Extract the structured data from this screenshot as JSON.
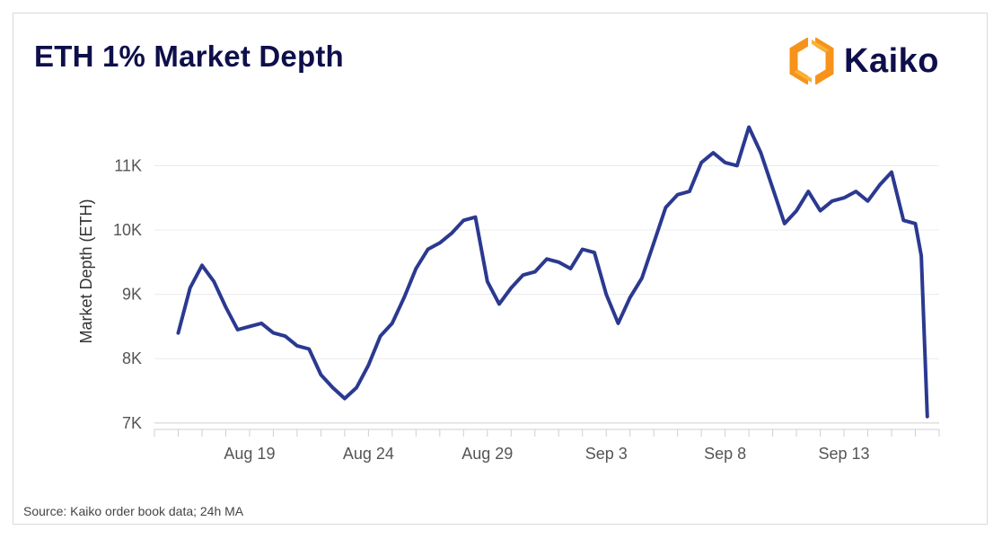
{
  "title": "ETH 1% Market Depth",
  "brand": {
    "name": "Kaiko",
    "accent": "#f7931a",
    "accent2": "#f9b233",
    "text_color": "#0e0f4a"
  },
  "source": "Source: Kaiko order book data; 24h MA",
  "chart_data": {
    "type": "line",
    "title": "ETH 1% Market Depth",
    "xlabel": "",
    "ylabel": "Market Depth (ETH)",
    "x_tick_labels": [
      "Aug 19",
      "Aug 24",
      "Aug 29",
      "Sep 3",
      "Sep 8",
      "Sep 13"
    ],
    "y_tick_labels": [
      "7K",
      "8K",
      "9K",
      "10K",
      "11K"
    ],
    "y_ticks": [
      7000,
      8000,
      9000,
      10000,
      11000
    ],
    "ylim": [
      6900,
      11900
    ],
    "xlim": [
      "2023-08-15",
      "2023-09-17"
    ],
    "grid": true,
    "line_color": "#2b3990",
    "series": [
      {
        "name": "",
        "x": [
          "2023-08-16",
          "2023-08-16T12",
          "2023-08-17",
          "2023-08-17T12",
          "2023-08-18",
          "2023-08-18T12",
          "2023-08-19",
          "2023-08-19T12",
          "2023-08-20",
          "2023-08-20T12",
          "2023-08-21",
          "2023-08-21T12",
          "2023-08-22",
          "2023-08-22T12",
          "2023-08-23",
          "2023-08-23T12",
          "2023-08-24",
          "2023-08-24T12",
          "2023-08-25",
          "2023-08-25T12",
          "2023-08-26",
          "2023-08-26T12",
          "2023-08-27",
          "2023-08-27T12",
          "2023-08-28",
          "2023-08-28T12",
          "2023-08-29",
          "2023-08-29T12",
          "2023-08-30",
          "2023-08-30T12",
          "2023-08-31",
          "2023-08-31T12",
          "2023-09-01",
          "2023-09-01T12",
          "2023-09-02",
          "2023-09-02T12",
          "2023-09-03",
          "2023-09-03T12",
          "2023-09-04",
          "2023-09-04T12",
          "2023-09-05",
          "2023-09-05T12",
          "2023-09-06",
          "2023-09-06T12",
          "2023-09-07",
          "2023-09-07T12",
          "2023-09-08",
          "2023-09-08T12",
          "2023-09-09",
          "2023-09-09T12",
          "2023-09-10",
          "2023-09-10T12",
          "2023-09-11",
          "2023-09-11T12",
          "2023-09-12",
          "2023-09-12T12",
          "2023-09-13",
          "2023-09-13T12",
          "2023-09-14",
          "2023-09-14T12",
          "2023-09-15",
          "2023-09-15T12",
          "2023-09-16",
          "2023-09-16T06",
          "2023-09-16T12"
        ],
        "values": [
          8400,
          9100,
          9450,
          9200,
          8800,
          8450,
          8500,
          8550,
          8400,
          8350,
          8200,
          8150,
          7750,
          7550,
          7380,
          7550,
          7900,
          8350,
          8550,
          8950,
          9400,
          9700,
          9800,
          9950,
          10150,
          10200,
          9200,
          8850,
          9100,
          9300,
          9350,
          9550,
          9500,
          9400,
          9700,
          9650,
          9000,
          8550,
          8950,
          9250,
          9800,
          10350,
          10550,
          10600,
          11050,
          11200,
          11050,
          11000,
          11600,
          11200,
          10650,
          10100,
          10300,
          10600,
          10300,
          10450,
          10500,
          10600,
          10450,
          10700,
          10900,
          10150,
          10100,
          9600,
          7100
        ]
      }
    ]
  }
}
